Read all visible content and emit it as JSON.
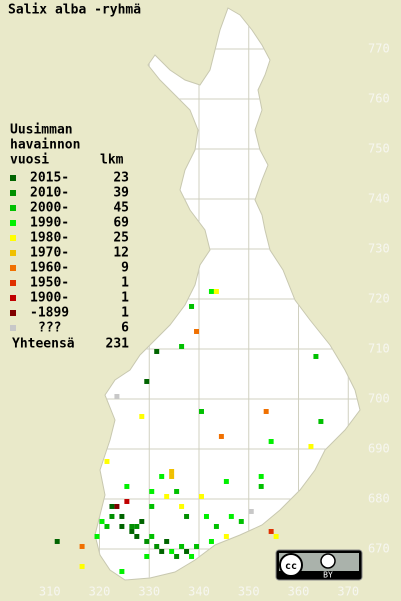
{
  "title": "Salix alba -ryhmä",
  "legend": {
    "heading": [
      "Uusimman",
      "havainnon",
      "vuosi"
    ],
    "count_heading": "lkm",
    "entries": [
      {
        "label": "2015-",
        "count": 23,
        "color": "#006400"
      },
      {
        "label": "2010-",
        "count": 39,
        "color": "#009000"
      },
      {
        "label": "2000-",
        "count": 45,
        "color": "#00c000"
      },
      {
        "label": "1990-",
        "count": 69,
        "color": "#00f000"
      },
      {
        "label": "1980-",
        "count": 25,
        "color": "#ffff00"
      },
      {
        "label": "1970-",
        "count": 12,
        "color": "#f0c000"
      },
      {
        "label": "1960-",
        "count": 9,
        "color": "#f07000"
      },
      {
        "label": "1950-",
        "count": 1,
        "color": "#e03000"
      },
      {
        "label": "1900-",
        "count": 1,
        "color": "#c00000"
      },
      {
        "label": "-1899",
        "count": 1,
        "color": "#800000"
      },
      {
        "label": "???",
        "count": 6,
        "color": "#c8c8c8"
      }
    ],
    "total_label": "Yhteensä",
    "total": 231
  },
  "map": {
    "xlim": [
      300,
      380.6
    ],
    "ylim": [
      659.6,
      779.8
    ],
    "xticks": [
      310,
      320,
      330,
      340,
      350,
      360,
      370
    ],
    "yticks": [
      670,
      680,
      690,
      700,
      710,
      720,
      730,
      740,
      750,
      760,
      770
    ],
    "points": [
      [
        338,
        718,
        2
      ],
      [
        339,
        713,
        6
      ],
      [
        342,
        721,
        3
      ],
      [
        343,
        721,
        4
      ],
      [
        331,
        709,
        0
      ],
      [
        336,
        710,
        2
      ],
      [
        329,
        703,
        0
      ],
      [
        363,
        708,
        2
      ],
      [
        353,
        697,
        6
      ],
      [
        364,
        695,
        2
      ],
      [
        340,
        697,
        2
      ],
      [
        328,
        696,
        4
      ],
      [
        344,
        692,
        6
      ],
      [
        354,
        691,
        3
      ],
      [
        362,
        690,
        4
      ],
      [
        334,
        684,
        5
      ],
      [
        334,
        685,
        5
      ],
      [
        321,
        687,
        4
      ],
      [
        352,
        684,
        3
      ],
      [
        352,
        682,
        2
      ],
      [
        325,
        682,
        3
      ],
      [
        332,
        684,
        3
      ],
      [
        322,
        678,
        0
      ],
      [
        324,
        676,
        0
      ],
      [
        326,
        674,
        1
      ],
      [
        327,
        672,
        0
      ],
      [
        329,
        671,
        1
      ],
      [
        332,
        669,
        0
      ],
      [
        335,
        668,
        1
      ],
      [
        337,
        669,
        0
      ],
      [
        339,
        670,
        2
      ],
      [
        342,
        671,
        3
      ],
      [
        345,
        672,
        4
      ],
      [
        348,
        675,
        2
      ],
      [
        354,
        673,
        7
      ],
      [
        355,
        672,
        4
      ],
      [
        350,
        677,
        10
      ],
      [
        323,
        678,
        9
      ],
      [
        325,
        679,
        8
      ],
      [
        320,
        675,
        3
      ],
      [
        311,
        671,
        0
      ],
      [
        316,
        670,
        6
      ],
      [
        316,
        666,
        4
      ],
      [
        324,
        665,
        3
      ],
      [
        333,
        680,
        4
      ],
      [
        340,
        680,
        4
      ],
      [
        337,
        676,
        1
      ],
      [
        341,
        676,
        3
      ],
      [
        330,
        678,
        2
      ],
      [
        328,
        675,
        0
      ],
      [
        323,
        700,
        10
      ],
      [
        326,
        673,
        0
      ],
      [
        327,
        674,
        1
      ],
      [
        330,
        672,
        2
      ],
      [
        331,
        670,
        1
      ],
      [
        333,
        671,
        0
      ],
      [
        334,
        669,
        3
      ],
      [
        336,
        670,
        2
      ],
      [
        322,
        676,
        1
      ],
      [
        321,
        674,
        2
      ],
      [
        324,
        674,
        0
      ],
      [
        329,
        668,
        3
      ],
      [
        338,
        668,
        3
      ],
      [
        343,
        674,
        2
      ],
      [
        346,
        676,
        3
      ],
      [
        319,
        672,
        3
      ],
      [
        330,
        681,
        3
      ],
      [
        335,
        681,
        2
      ],
      [
        345,
        683,
        3
      ],
      [
        336,
        678,
        4
      ]
    ]
  },
  "license": "BY"
}
